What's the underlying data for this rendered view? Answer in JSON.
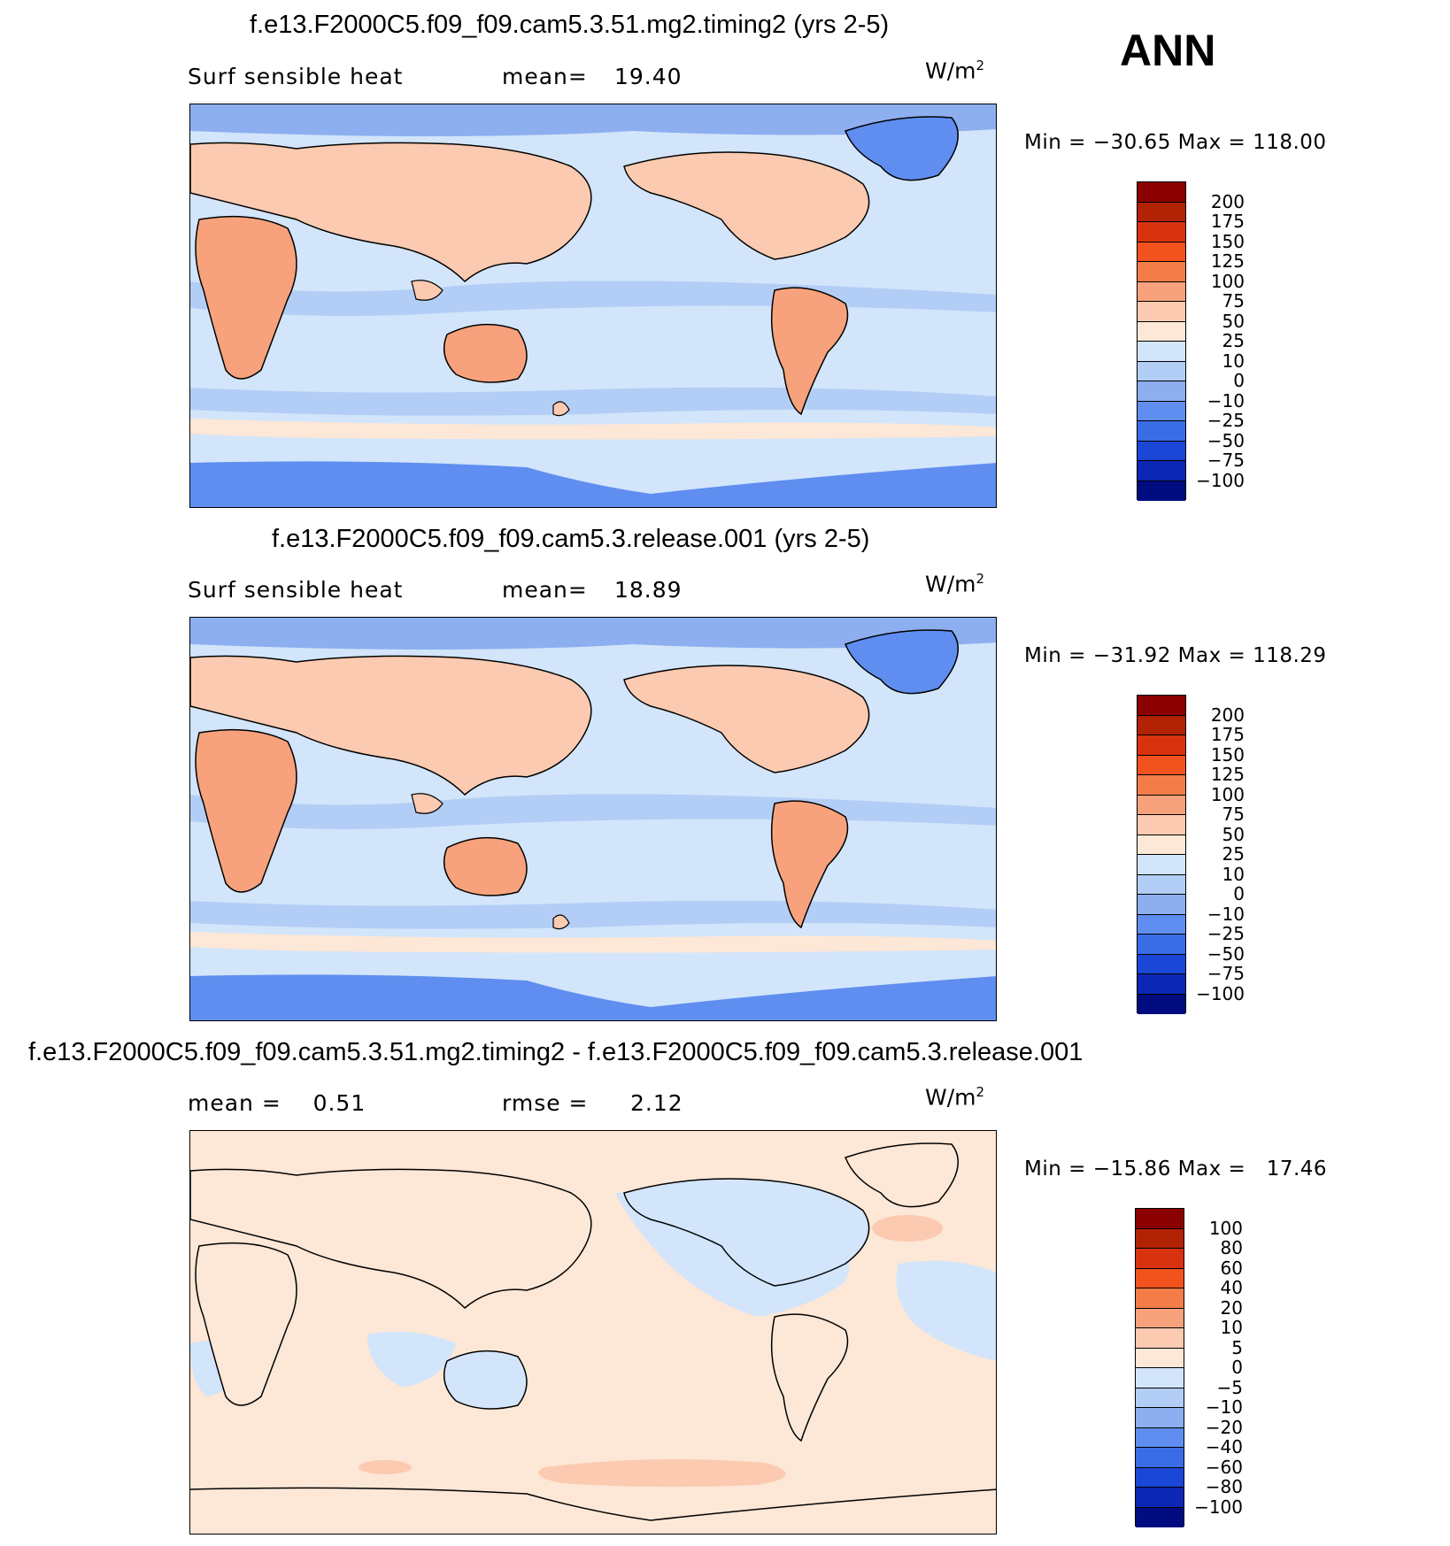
{
  "season": "ANN",
  "panels": [
    {
      "title": "f.e13.F2000C5.f09_f09.cam5.3.51.mg2.timing2 (yrs 2-5)",
      "left_text": "Surf sensible heat",
      "stat_label": "mean=",
      "stat_value": "19.40",
      "unit": "W/m",
      "unit_sup": "2",
      "minmax": "Min = −30.65 Max = 118.00",
      "colorbar_labels": [
        "200",
        "175",
        "150",
        "125",
        "100",
        "75",
        "50",
        "25",
        "10",
        "0",
        "−10",
        "−25",
        "−50",
        "−75",
        "−100"
      ]
    },
    {
      "title": "f.e13.F2000C5.f09_f09.cam5.3.release.001 (yrs 2-5)",
      "left_text": "Surf sensible heat",
      "stat_label": "mean=",
      "stat_value": "18.89",
      "unit": "W/m",
      "unit_sup": "2",
      "minmax": "Min = −31.92 Max = 118.29",
      "colorbar_labels": [
        "200",
        "175",
        "150",
        "125",
        "100",
        "75",
        "50",
        "25",
        "10",
        "0",
        "−10",
        "−25",
        "−50",
        "−75",
        "−100"
      ]
    },
    {
      "title": "f.e13.F2000C5.f09_f09.cam5.3.51.mg2.timing2 - f.e13.F2000C5.f09_f09.cam5.3.release.001",
      "left_text": "mean =    0.51",
      "stat_label": "rmse =",
      "stat_value": "2.12",
      "unit": "W/m",
      "unit_sup": "2",
      "minmax": "Min = −15.86 Max =   17.46",
      "colorbar_labels": [
        "100",
        "80",
        "60",
        "40",
        "20",
        "10",
        "5",
        "0",
        "−5",
        "−10",
        "−20",
        "−40",
        "−60",
        "−80",
        "−100"
      ]
    }
  ],
  "colorbar_colors": [
    "#8b0000",
    "#b22204",
    "#d8330e",
    "#f2521d",
    "#f47c48",
    "#f7a27c",
    "#fbcab0",
    "#fde7d6",
    "#d2e5fa",
    "#b3cef6",
    "#8dafef",
    "#5f8ef0",
    "#3a6ce6",
    "#1b47d6",
    "#0c27b3",
    "#000c80"
  ],
  "map_colors": {
    "ocean_light": "#d2e5fa",
    "ocean_mid": "#b3cef6",
    "ocean_blue": "#8dafef",
    "polar": "#5f8ef0",
    "land_warm": "#fbcab0",
    "land_hot": "#f7a27c",
    "diff_ocean": "#fde7d6",
    "diff_neg": "#d2e5fa",
    "diff_pos": "#fbcab0"
  }
}
